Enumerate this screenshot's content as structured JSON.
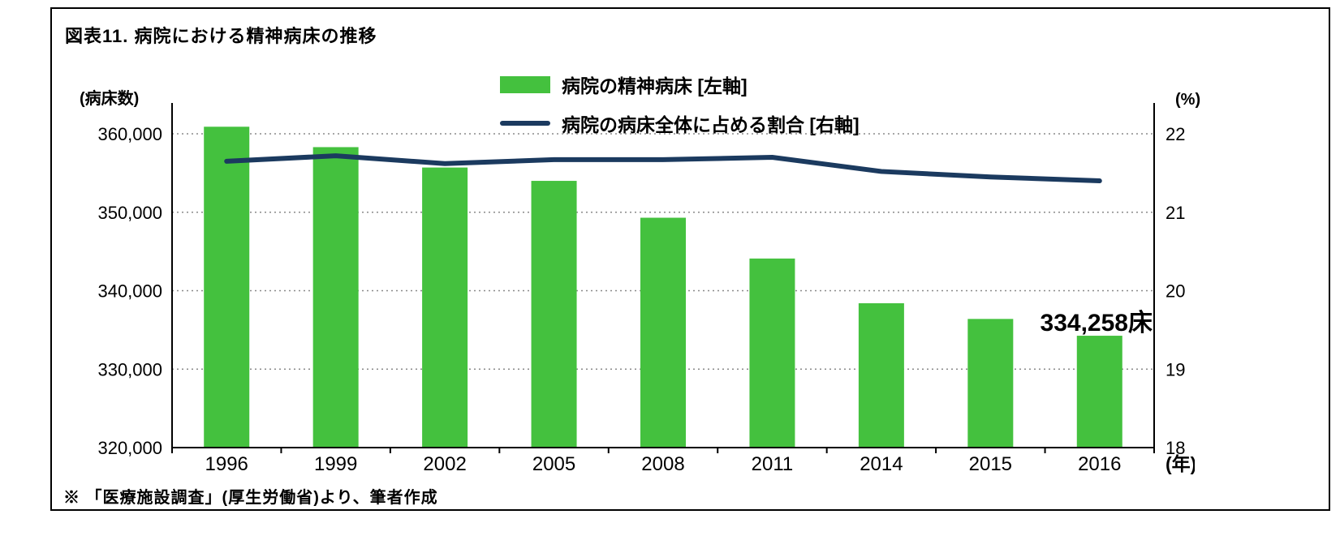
{
  "figure": {
    "title": "図表11. 病院における精神病床の推移",
    "left_axis_unit": "(病床数)",
    "right_axis_unit": "(%)",
    "x_axis_suffix": "(年)",
    "footnote": "※ 「医療施設調査」(厚生労働省)より、筆者作成"
  },
  "legend": [
    {
      "type": "bar",
      "label": "病院の精神病床 [左軸]",
      "color": "#44c13e"
    },
    {
      "type": "line",
      "label": "病院の病床全体に占める割合 [右軸]",
      "color": "#1b3a5f"
    }
  ],
  "chart_data": {
    "type": "bar+line combo",
    "title": "図表11. 病院における精神病床の推移",
    "categories": [
      "1996",
      "1999",
      "2002",
      "2005",
      "2008",
      "2011",
      "2014",
      "2015",
      "2016"
    ],
    "series": [
      {
        "name": "病院の精神病床",
        "type": "bar",
        "axis": "left",
        "color": "#44c13e",
        "values": [
          360900,
          358300,
          355700,
          354000,
          349300,
          344100,
          338400,
          336400,
          334258
        ]
      },
      {
        "name": "病院の病床全体に占める割合",
        "type": "line",
        "axis": "right",
        "color": "#1b3a5f",
        "values": [
          21.65,
          21.72,
          21.62,
          21.67,
          21.67,
          21.7,
          21.52,
          21.45,
          21.4
        ]
      }
    ],
    "left_axis": {
      "unit": "(病床数)",
      "min": 320000,
      "max": 360000,
      "tick_step": 10000,
      "tick_labels": [
        "320,000",
        "330,000",
        "340,000",
        "350,000",
        "360,000"
      ]
    },
    "right_axis": {
      "unit": "(%)",
      "min": 18,
      "max": 22,
      "tick_step": 1,
      "tick_labels": [
        "18",
        "19",
        "20",
        "21",
        "22"
      ]
    },
    "annotation": {
      "text": "334,258床",
      "target_category": "2016"
    },
    "grid": "horizontal-dotted",
    "legend_position": "top-center"
  }
}
